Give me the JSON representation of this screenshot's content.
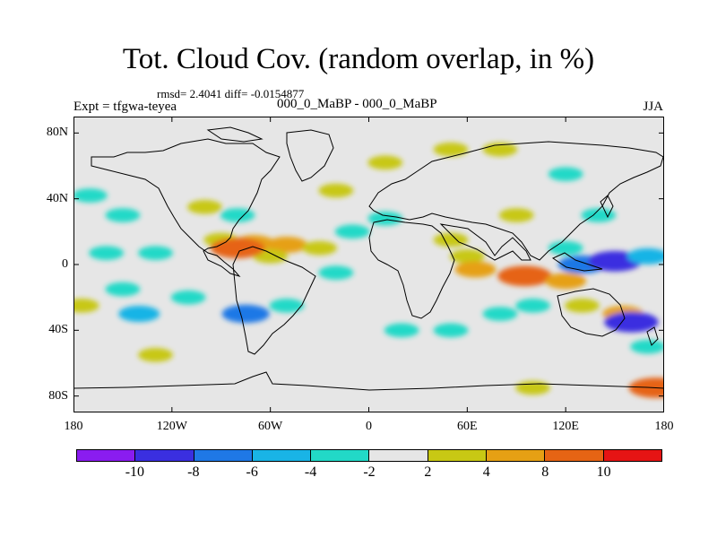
{
  "title": "Tot. Cloud Cov. (random overlap, in %)",
  "stats": "rmsd= 2.4041 diff= -0.0154877",
  "experiment": "Expt = tfgwa-teyea",
  "subtitle": "000_0_MaBP - 000_0_MaBP",
  "season": "JJA",
  "chart_data": {
    "type": "heatmap",
    "projection": "cylindrical-equidistant",
    "lon_range": [
      -180,
      180
    ],
    "lat_range": [
      -90,
      90
    ],
    "lat_ticks": [
      {
        "value": 80,
        "label": "80N"
      },
      {
        "value": 40,
        "label": "40N"
      },
      {
        "value": 0,
        "label": "0"
      },
      {
        "value": -40,
        "label": "40S"
      },
      {
        "value": -80,
        "label": "80S"
      }
    ],
    "lon_ticks": [
      {
        "value": -180,
        "label": "180"
      },
      {
        "value": -120,
        "label": "120W"
      },
      {
        "value": -60,
        "label": "60W"
      },
      {
        "value": 0,
        "label": "0"
      },
      {
        "value": 60,
        "label": "60E"
      },
      {
        "value": 120,
        "label": "120E"
      },
      {
        "value": 180,
        "label": "180"
      }
    ],
    "colorbar": {
      "colors": [
        "#8a1cf0",
        "#3a2fe0",
        "#1f78e6",
        "#19b4e6",
        "#22d9c7",
        "#e6e6e6",
        "#c8c814",
        "#e6a014",
        "#e66414",
        "#e61414"
      ],
      "labels": [
        {
          "pos": 1,
          "label": "-10"
        },
        {
          "pos": 2,
          "label": "-8"
        },
        {
          "pos": 3,
          "label": "-6"
        },
        {
          "pos": 4,
          "label": "-4"
        },
        {
          "pos": 5,
          "label": "-2"
        },
        {
          "pos": 6,
          "label": "2"
        },
        {
          "pos": 7,
          "label": "4"
        },
        {
          "pos": 8,
          "label": "8"
        },
        {
          "pos": 9,
          "label": "10"
        }
      ]
    },
    "anomalies": [
      {
        "lon": -170,
        "lat": 42,
        "value": -3
      },
      {
        "lon": -150,
        "lat": 30,
        "value": -3
      },
      {
        "lon": -160,
        "lat": 7,
        "value": -3
      },
      {
        "lon": -130,
        "lat": 7,
        "value": -3
      },
      {
        "lon": -150,
        "lat": -15,
        "value": -3
      },
      {
        "lon": -110,
        "lat": -20,
        "value": -3
      },
      {
        "lon": -175,
        "lat": -25,
        "value": 3
      },
      {
        "lon": -140,
        "lat": -30,
        "value": -5
      },
      {
        "lon": -130,
        "lat": -55,
        "value": 3
      },
      {
        "lon": -100,
        "lat": 35,
        "value": 3
      },
      {
        "lon": -90,
        "lat": 15,
        "value": 3
      },
      {
        "lon": -70,
        "lat": 13,
        "value": 5
      },
      {
        "lon": -50,
        "lat": 12,
        "value": 5
      },
      {
        "lon": -30,
        "lat": 10,
        "value": 3
      },
      {
        "lon": -60,
        "lat": 5,
        "value": 3
      },
      {
        "lon": -80,
        "lat": 10,
        "value": 9
      },
      {
        "lon": -75,
        "lat": -30,
        "value": -7
      },
      {
        "lon": -50,
        "lat": -25,
        "value": -3
      },
      {
        "lon": -20,
        "lat": -5,
        "value": -3
      },
      {
        "lon": -10,
        "lat": 20,
        "value": -3
      },
      {
        "lon": -80,
        "lat": 30,
        "value": -3
      },
      {
        "lon": 10,
        "lat": 28,
        "value": -3
      },
      {
        "lon": 50,
        "lat": 15,
        "value": 3
      },
      {
        "lon": 50,
        "lat": 70,
        "value": 3
      },
      {
        "lon": 80,
        "lat": 70,
        "value": 3
      },
      {
        "lon": 120,
        "lat": 55,
        "value": -3
      },
      {
        "lon": 140,
        "lat": 30,
        "value": -3
      },
      {
        "lon": 90,
        "lat": 30,
        "value": 3
      },
      {
        "lon": 60,
        "lat": 5,
        "value": 3
      },
      {
        "lon": 65,
        "lat": -3,
        "value": 5
      },
      {
        "lon": 95,
        "lat": -7,
        "value": 9
      },
      {
        "lon": 120,
        "lat": -10,
        "value": 5
      },
      {
        "lon": 130,
        "lat": 0,
        "value": -7
      },
      {
        "lon": 150,
        "lat": 2,
        "value": -9
      },
      {
        "lon": 170,
        "lat": 5,
        "value": -5
      },
      {
        "lon": 120,
        "lat": 10,
        "value": -3
      },
      {
        "lon": 130,
        "lat": -25,
        "value": 3
      },
      {
        "lon": 155,
        "lat": -30,
        "value": 5
      },
      {
        "lon": 160,
        "lat": -35,
        "value": -9
      },
      {
        "lon": 80,
        "lat": -30,
        "value": -3
      },
      {
        "lon": 100,
        "lat": -25,
        "value": -3
      },
      {
        "lon": 50,
        "lat": -40,
        "value": -3
      },
      {
        "lon": 20,
        "lat": -40,
        "value": -3
      },
      {
        "lon": 170,
        "lat": -50,
        "value": -3
      },
      {
        "lon": 175,
        "lat": -75,
        "value": 9
      },
      {
        "lon": 100,
        "lat": -75,
        "value": 3
      },
      {
        "lon": 10,
        "lat": 62,
        "value": 3
      },
      {
        "lon": -20,
        "lat": 45,
        "value": 3
      }
    ]
  }
}
